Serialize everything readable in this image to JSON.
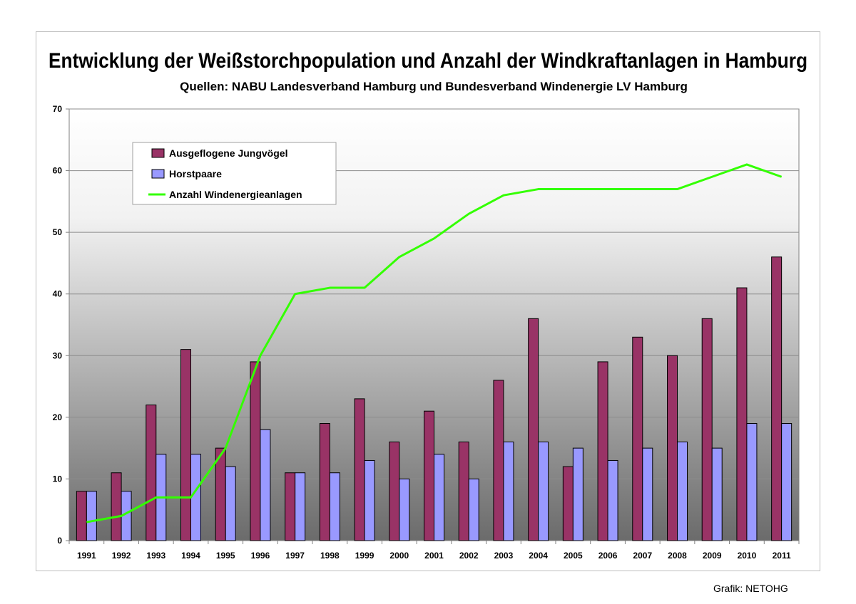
{
  "chart_data": {
    "type": "bar",
    "title": "Entwicklung der Weißstorchpopulation und Anzahl der Windkraftanlagen in Hamburg",
    "subtitle": "Quellen: NABU Landesverband Hamburg und Bundesverband Windenergie LV Hamburg",
    "categories": [
      "1991",
      "1992",
      "1993",
      "1994",
      "1995",
      "1996",
      "1997",
      "1998",
      "1999",
      "2000",
      "2001",
      "2002",
      "2003",
      "2004",
      "2005",
      "2006",
      "2007",
      "2008",
      "2009",
      "2010",
      "2011"
    ],
    "series": [
      {
        "name": "Ausgeflogene Jungvögel",
        "type": "bar",
        "color": "#993366",
        "values": [
          8,
          11,
          22,
          31,
          15,
          29,
          11,
          19,
          23,
          16,
          21,
          16,
          26,
          36,
          12,
          29,
          33,
          30,
          36,
          41,
          46
        ]
      },
      {
        "name": "Horstpaare",
        "type": "bar",
        "color": "#9999ff",
        "values": [
          8,
          8,
          14,
          14,
          12,
          18,
          11,
          11,
          13,
          10,
          14,
          10,
          16,
          16,
          15,
          13,
          15,
          16,
          15,
          19,
          19
        ]
      },
      {
        "name": "Anzahl Windenergieanlagen",
        "type": "line",
        "color": "#33ff00",
        "values": [
          3,
          4,
          7,
          7,
          15,
          30,
          40,
          41,
          41,
          46,
          49,
          53,
          56,
          57,
          57,
          57,
          57,
          57,
          59,
          61,
          59
        ]
      }
    ],
    "ylim": [
      0,
      70
    ],
    "yticks": [
      "0",
      "10",
      "20",
      "30",
      "40",
      "50",
      "60",
      "70"
    ],
    "grid": true,
    "legend_position": "top-left"
  },
  "footer": {
    "credit": "Grafik: NETOHG"
  }
}
